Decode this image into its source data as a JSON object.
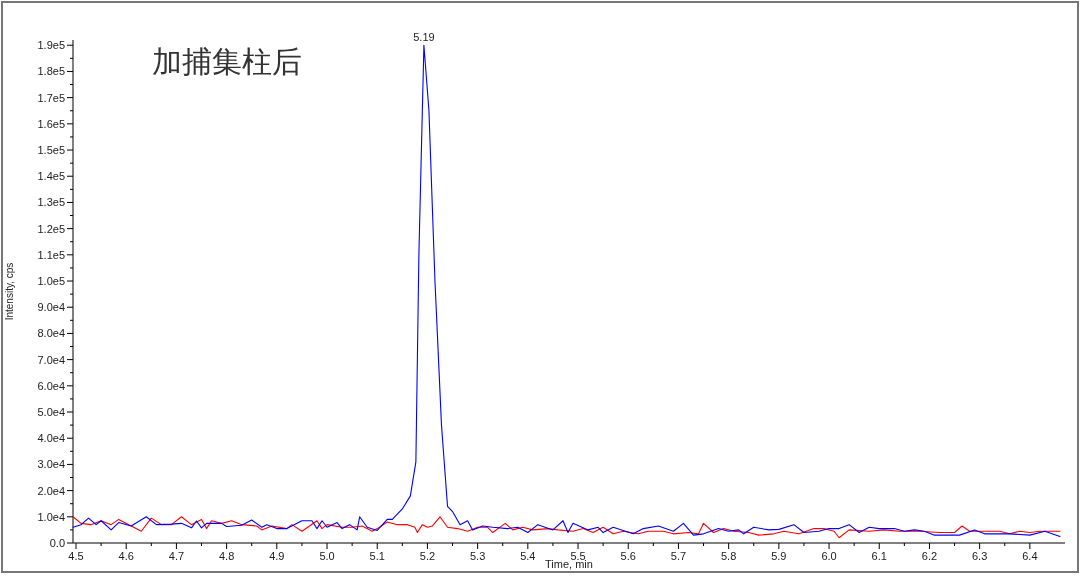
{
  "chart_data": {
    "type": "line",
    "title": "加捕集柱后",
    "xlabel": "Time, min",
    "ylabel": "Intensity, cps",
    "xlim": [
      4.494,
      6.47
    ],
    "ylim": [
      0,
      192000
    ],
    "xticks": [
      4.5,
      4.6,
      4.7,
      4.8,
      4.9,
      {
        "value": 5.0,
        "label": "5.0"
      },
      5.1,
      5.2,
      5.3,
      5.4,
      5.5,
      5.6,
      5.7,
      5.8,
      5.9,
      {
        "value": 6.0,
        "label": "6.0"
      },
      6.1,
      6.2,
      6.3,
      6.4
    ],
    "yticks": [
      {
        "value": 0,
        "label": "0.0"
      },
      {
        "value": 10000,
        "label": "1.0e4"
      },
      {
        "value": 20000,
        "label": "2.0e4"
      },
      {
        "value": 30000,
        "label": "3.0e4"
      },
      {
        "value": 40000,
        "label": "4.0e4"
      },
      {
        "value": 50000,
        "label": "5.0e4"
      },
      {
        "value": 60000,
        "label": "6.0e4"
      },
      {
        "value": 70000,
        "label": "7.0e4"
      },
      {
        "value": 80000,
        "label": "8.0e4"
      },
      {
        "value": 90000,
        "label": "9.0e4"
      },
      {
        "value": 100000,
        "label": "1.0e5"
      },
      {
        "value": 110000,
        "label": "1.1e5"
      },
      {
        "value": 120000,
        "label": "1.2e5"
      },
      {
        "value": 130000,
        "label": "1.3e5"
      },
      {
        "value": 140000,
        "label": "1.4e5"
      },
      {
        "value": 150000,
        "label": "1.5e5"
      },
      {
        "value": 160000,
        "label": "1.6e5"
      },
      {
        "value": 170000,
        "label": "1.7e5"
      },
      {
        "value": 180000,
        "label": "1.8e5"
      },
      {
        "value": 190000,
        "label": "1.9e5"
      }
    ],
    "marker": "none",
    "line_style": "solid",
    "annotations": [
      {
        "text": "5.19",
        "x": 5.193,
        "y": 190000
      }
    ],
    "series": [
      {
        "color": "#ff0000",
        "x": [
          4.494,
          4.51,
          4.53,
          4.55,
          4.57,
          4.585,
          4.61,
          4.63,
          4.65,
          4.67,
          4.69,
          4.71,
          4.73,
          4.75,
          4.76,
          4.77,
          4.79,
          4.81,
          4.83,
          4.86,
          4.87,
          4.89,
          4.92,
          4.93,
          4.95,
          4.98,
          4.99,
          5.0,
          5.03,
          5.05,
          5.07,
          5.09,
          5.1,
          5.12,
          5.14,
          5.16,
          5.175,
          5.18,
          5.19,
          5.2,
          5.21,
          5.225,
          5.24,
          5.26,
          5.28,
          5.3,
          5.32,
          5.33,
          5.355,
          5.37,
          5.39,
          5.41,
          5.44,
          5.46,
          5.49,
          5.51,
          5.53,
          5.55,
          5.57,
          5.59,
          5.62,
          5.64,
          5.67,
          5.69,
          5.72,
          5.74,
          5.75,
          5.77,
          5.79,
          5.81,
          5.84,
          5.86,
          5.89,
          5.91,
          5.94,
          5.97,
          5.99,
          6.01,
          6.02,
          6.04,
          6.08,
          6.11,
          6.14,
          6.18,
          6.22,
          6.25,
          6.265,
          6.28,
          6.31,
          6.34,
          6.36,
          6.38,
          6.4,
          6.42,
          6.46
        ],
        "values": [
          10000,
          7500,
          7000,
          8500,
          7000,
          9000,
          6500,
          4500,
          9500,
          7000,
          7000,
          10000,
          7000,
          9000,
          5500,
          8500,
          7500,
          8500,
          7000,
          6500,
          5000,
          6500,
          5500,
          7000,
          4500,
          8500,
          5500,
          7000,
          6000,
          6000,
          6500,
          4500,
          5500,
          8000,
          7000,
          7000,
          6000,
          4000,
          7000,
          6000,
          6500,
          10000,
          6000,
          5500,
          4500,
          6000,
          6000,
          4000,
          7500,
          5000,
          6000,
          5000,
          5500,
          5000,
          4500,
          5500,
          4000,
          6000,
          3500,
          4500,
          3500,
          4500,
          4500,
          3500,
          4000,
          3500,
          7500,
          4000,
          5500,
          4500,
          4000,
          3000,
          3500,
          4500,
          3500,
          5500,
          5500,
          4500,
          2000,
          5000,
          4500,
          5000,
          4500,
          4500,
          4000,
          4000,
          6500,
          4500,
          4500,
          4500,
          3500,
          4500,
          4000,
          4500,
          4500
        ]
      },
      {
        "color": "#0000ff",
        "x": [
          4.494,
          4.51,
          4.525,
          4.54,
          4.55,
          4.57,
          4.585,
          4.61,
          4.64,
          4.66,
          4.69,
          4.71,
          4.73,
          4.74,
          4.75,
          4.76,
          4.79,
          4.8,
          4.83,
          4.85,
          4.87,
          4.88,
          4.9,
          4.92,
          4.95,
          4.97,
          4.98,
          4.99,
          5.0,
          5.02,
          5.03,
          5.045,
          5.06,
          5.065,
          5.08,
          5.1,
          5.12,
          5.13,
          5.15,
          5.166,
          5.177,
          5.183,
          5.193,
          5.203,
          5.215,
          5.228,
          5.24,
          5.25,
          5.265,
          5.28,
          5.29,
          5.31,
          5.33,
          5.36,
          5.38,
          5.4,
          5.42,
          5.45,
          5.47,
          5.48,
          5.49,
          5.52,
          5.54,
          5.55,
          5.57,
          5.61,
          5.63,
          5.66,
          5.69,
          5.71,
          5.73,
          5.75,
          5.78,
          5.8,
          5.82,
          5.83,
          5.85,
          5.88,
          5.9,
          5.93,
          5.95,
          5.98,
          6.0,
          6.02,
          6.04,
          6.06,
          6.08,
          6.1,
          6.13,
          6.15,
          6.17,
          6.19,
          6.21,
          6.24,
          6.26,
          6.29,
          6.31,
          6.36,
          6.4,
          6.43,
          6.46
        ],
        "values": [
          6000,
          7000,
          9500,
          7000,
          8500,
          5000,
          7800,
          6500,
          10000,
          7000,
          7200,
          7500,
          5800,
          8400,
          5800,
          7500,
          7500,
          6300,
          6800,
          8800,
          6000,
          7000,
          5500,
          5500,
          8500,
          8500,
          5500,
          8500,
          6000,
          7800,
          5500,
          7000,
          5000,
          10000,
          6000,
          4800,
          9000,
          9000,
          13000,
          18000,
          31000,
          110000,
          190000,
          165000,
          100000,
          45000,
          14000,
          12000,
          7000,
          8500,
          5000,
          6500,
          6000,
          5500,
          6000,
          4000,
          7000,
          5000,
          8500,
          4000,
          7500,
          5000,
          6000,
          4000,
          6000,
          3500,
          5500,
          6500,
          4500,
          7500,
          3000,
          3500,
          5500,
          4500,
          5000,
          3500,
          6000,
          5000,
          5200,
          7000,
          4000,
          4500,
          5500,
          5500,
          7000,
          4000,
          6000,
          5500,
          5500,
          4500,
          5000,
          4500,
          3000,
          3000,
          3000,
          5000,
          3500,
          3500,
          3000,
          4500,
          2500
        ]
      }
    ]
  }
}
